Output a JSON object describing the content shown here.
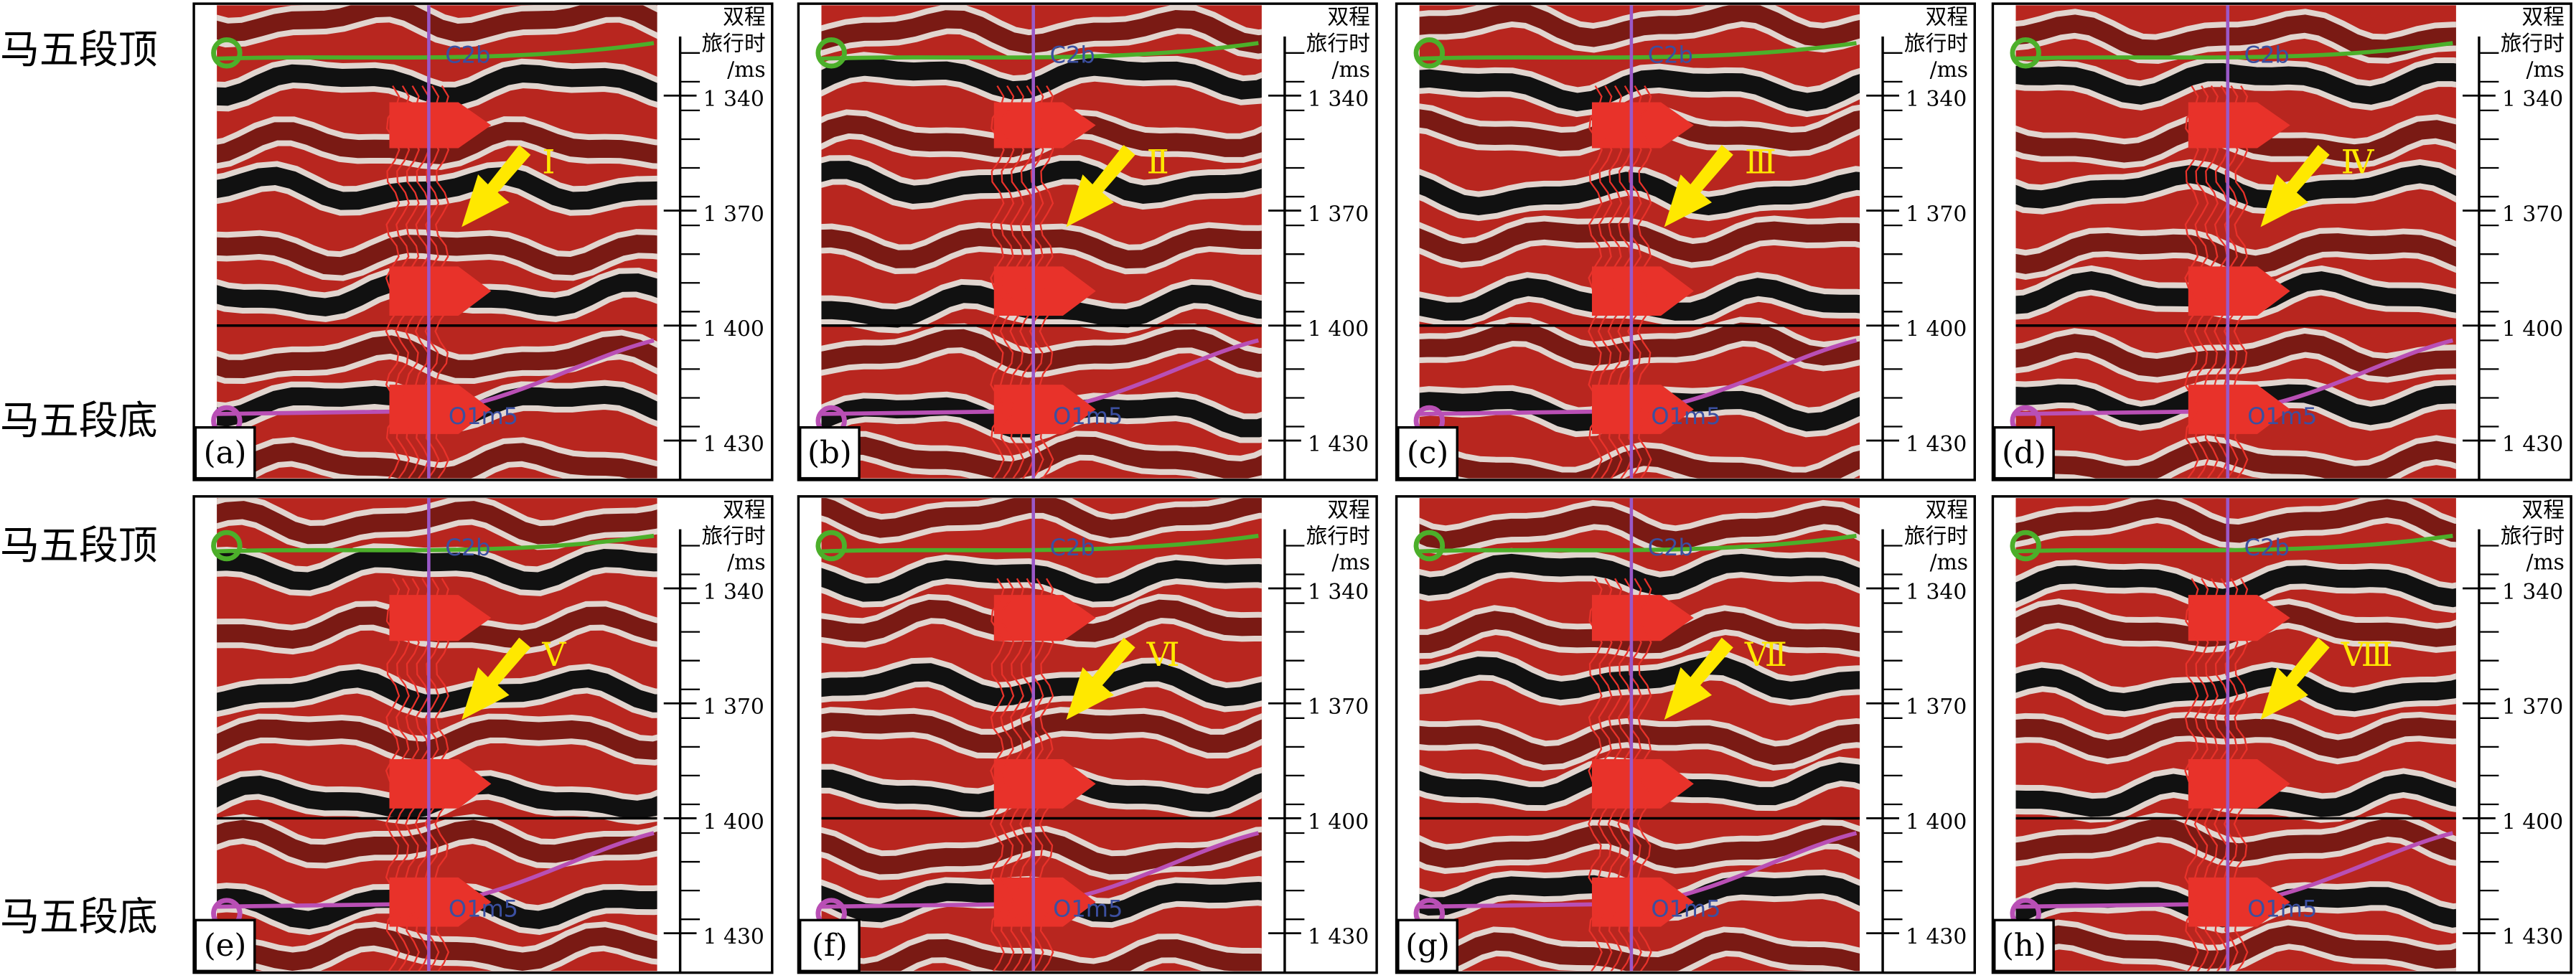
{
  "row_labels": {
    "top": "马五段顶",
    "bottom": "马五段底"
  },
  "axis_title": [
    "双程",
    "旅行时",
    "/ms"
  ],
  "ticks": [
    "1 340",
    "1 370",
    "1 400",
    "1 430"
  ],
  "horizons": {
    "top": "C2b",
    "bottom": "O1m5"
  },
  "panels": [
    {
      "label": "(a)",
      "marker": "Ⅰ"
    },
    {
      "label": "(b)",
      "marker": "Ⅱ"
    },
    {
      "label": "(c)",
      "marker": "Ⅲ"
    },
    {
      "label": "(d)",
      "marker": "Ⅳ"
    },
    {
      "label": "(e)",
      "marker": "Ⅴ"
    },
    {
      "label": "(f)",
      "marker": "Ⅵ"
    },
    {
      "label": "(g)",
      "marker": "Ⅶ"
    },
    {
      "label": "(h)",
      "marker": "Ⅷ"
    }
  ]
}
